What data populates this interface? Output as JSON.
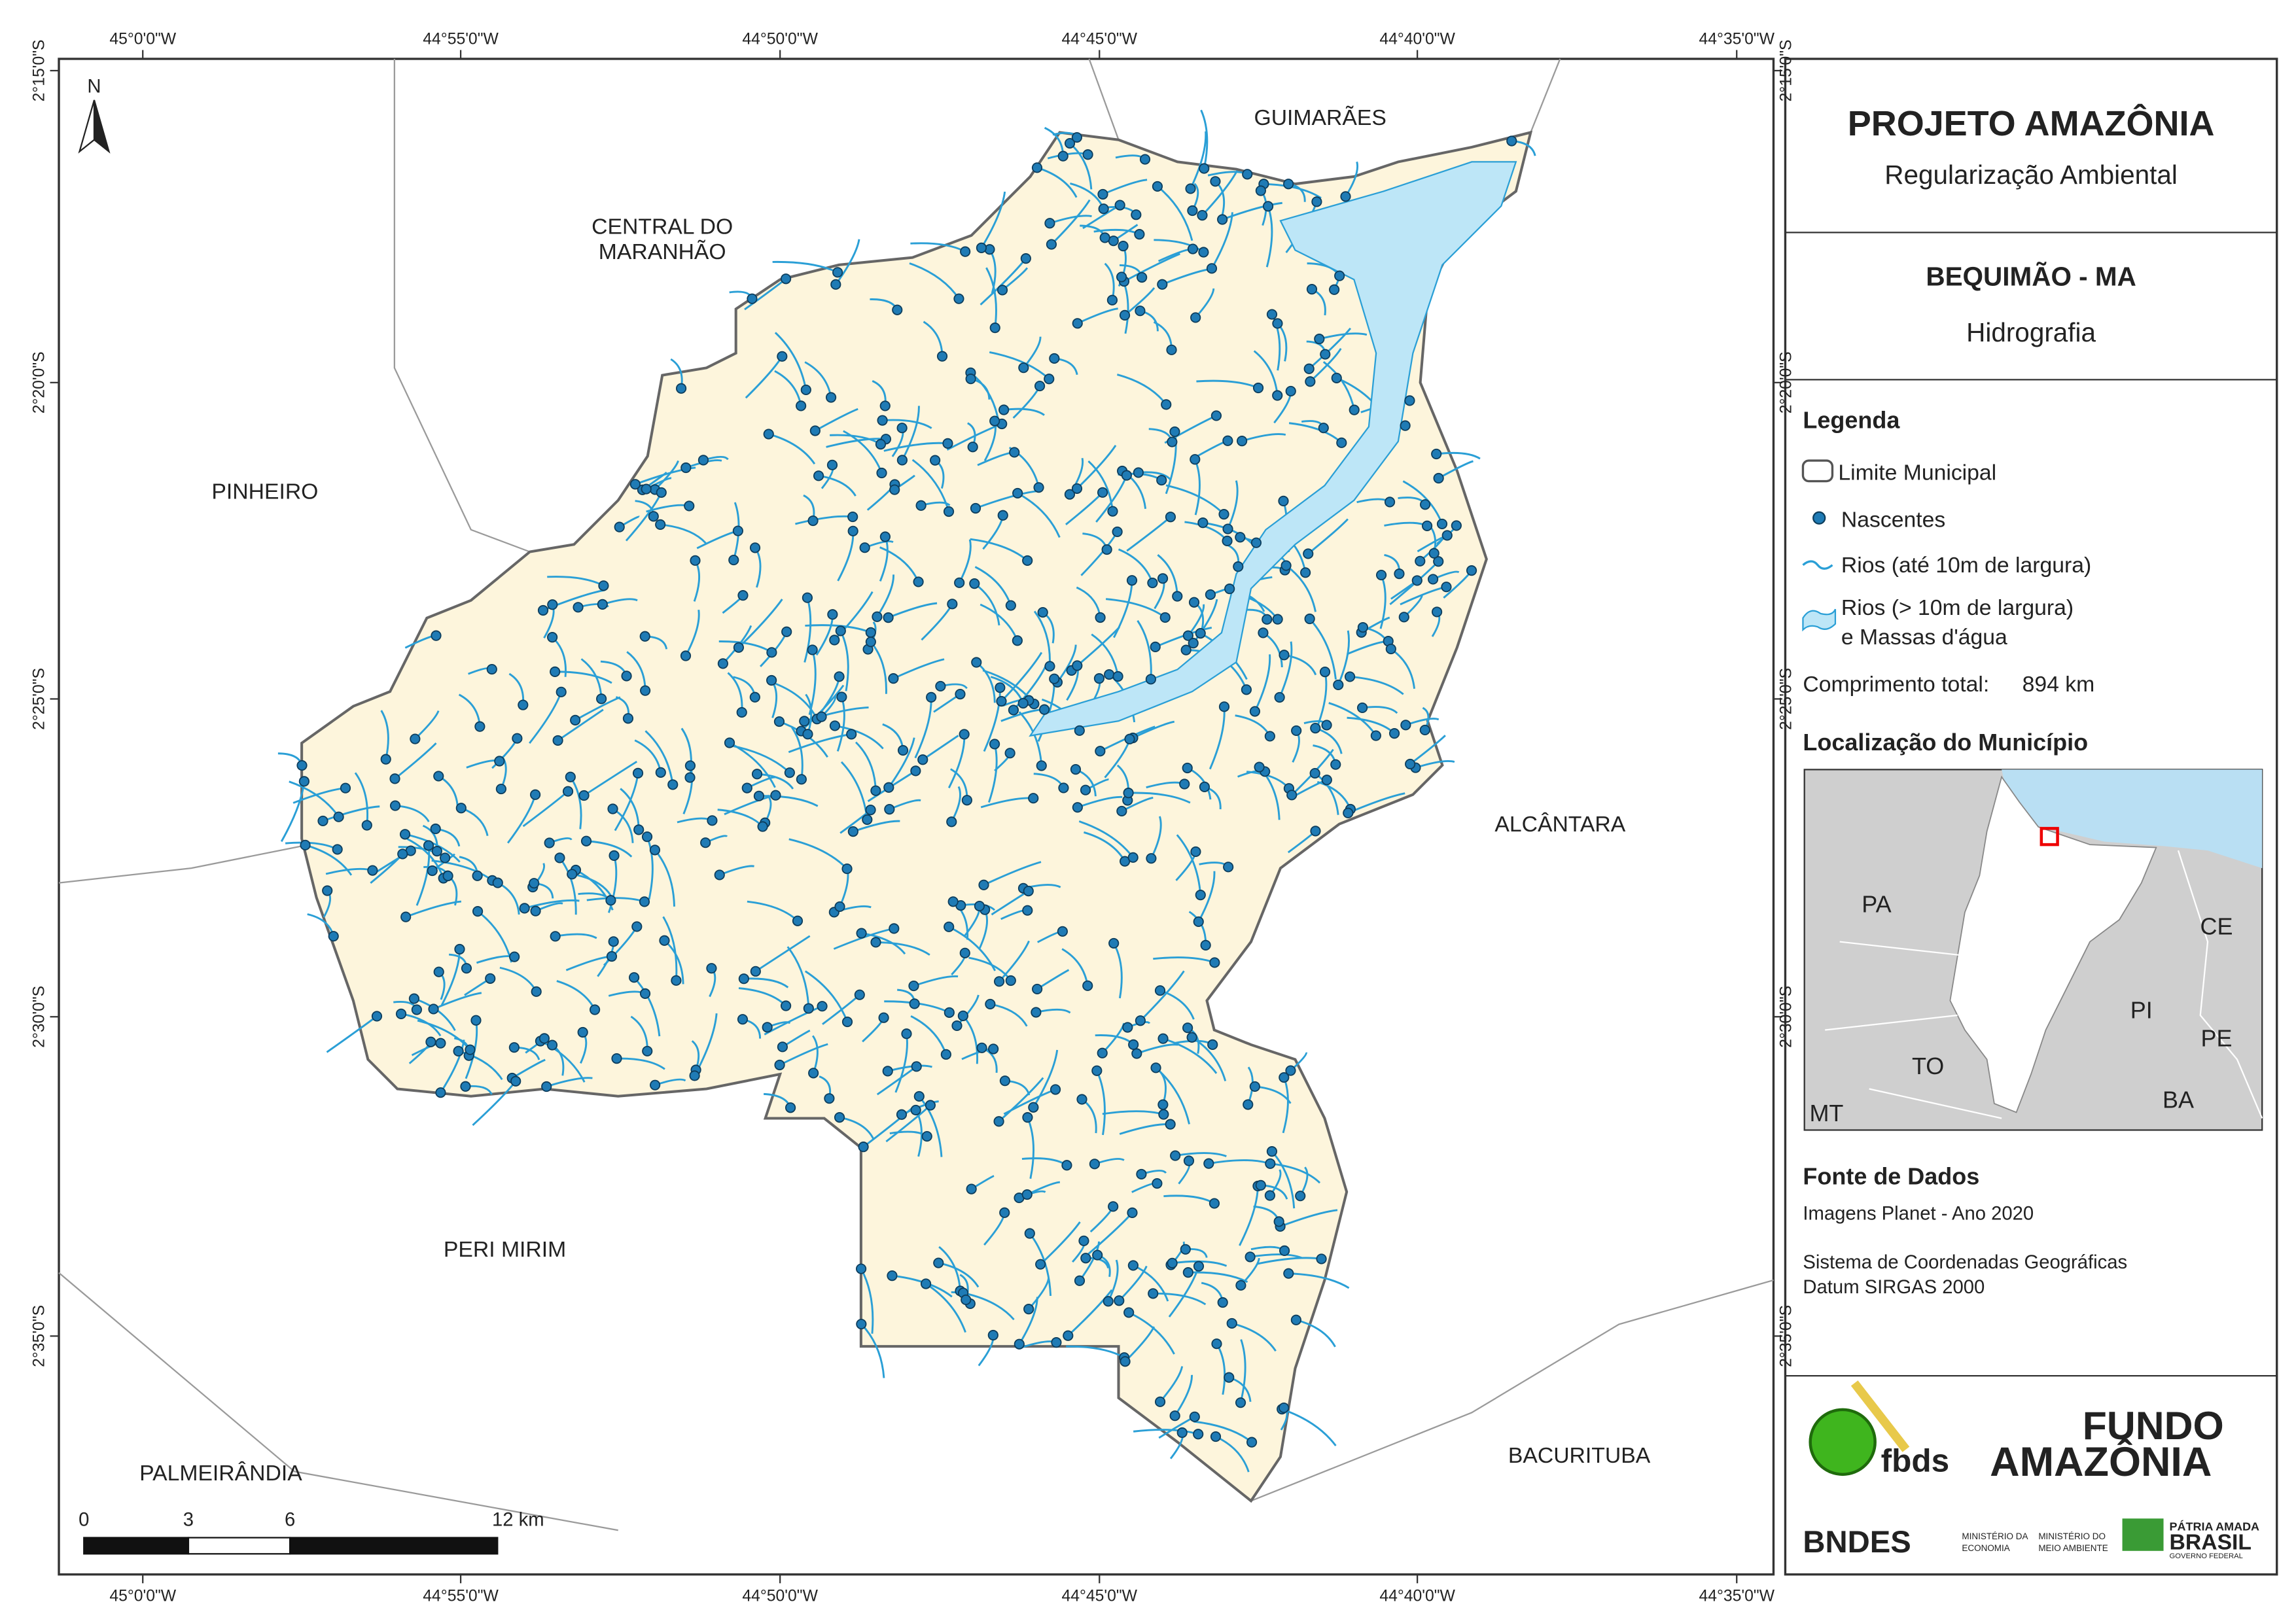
{
  "header": {
    "title": "PROJETO AMAZÔNIA",
    "subtitle": "Regularização Ambiental"
  },
  "map_info": {
    "municipality": "BEQUIMÃO - MA",
    "theme": "Hidrografia"
  },
  "legend": {
    "title": "Legenda",
    "items": [
      "Limite Municipal",
      "Nascentes",
      "Rios (até 10m de largura)",
      "Rios (> 10m de largura)",
      "e Massas d'água"
    ],
    "total_label": "Comprimento total:",
    "total_value": "894 km"
  },
  "location": {
    "title": "Localização do Município",
    "labels": [
      "PA",
      "CE",
      "PI",
      "TO",
      "PE",
      "BA",
      "MT"
    ]
  },
  "sources": {
    "title": "Fonte de Dados",
    "lines": [
      "Imagens Planet - Ano 2020",
      "Sistema de Coordenadas Geográficas",
      "Datum SIRGAS 2000"
    ]
  },
  "map": {
    "north": "N",
    "graticule_x": [
      "45°0'0\"W",
      "44°55'0\"W",
      "44°50'0\"W",
      "44°45'0\"W",
      "44°40'0\"W",
      "44°35'0\"W"
    ],
    "graticule_y": [
      "2°15'0\"S",
      "2°20'0\"S",
      "2°25'0\"S",
      "2°30'0\"S",
      "2°35'0\"S"
    ],
    "neighbors": [
      "GUIMARÃES",
      "CENTRAL DO",
      "MARANHÃO",
      "PINHEIRO",
      "ALCÂNTARA",
      "PERI MIRIM",
      "PALMEIRÂNDIA",
      "BACURITUBA"
    ],
    "scale_labels": [
      "0",
      "3",
      "6",
      "12 km"
    ]
  },
  "logos": {
    "fbds": "fbds",
    "fundo": "FUNDO",
    "amazonia": "AMAZÔNIA",
    "bndes": "BNDES",
    "min1": "MINISTÉRIO DA",
    "min1b": "ECONOMIA",
    "min2": "MINISTÉRIO DO",
    "min2b": "MEIO AMBIENTE",
    "patria": "PÁTRIA AMADA",
    "brasil": "BRASIL",
    "gov": "GOVERNO FEDERAL"
  }
}
